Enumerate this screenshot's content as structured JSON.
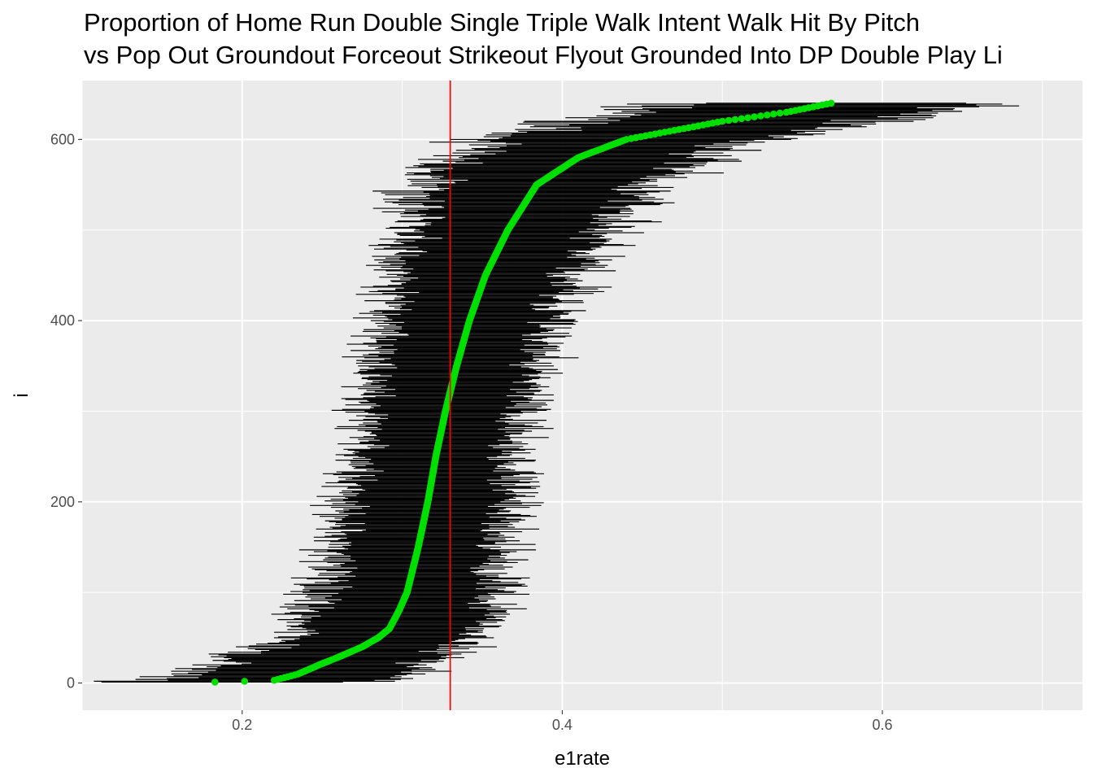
{
  "chart_data": {
    "type": "scatter",
    "title_lines": [
      "Proportion of  Home Run Double Single Triple Walk Intent Walk Hit By Pitch",
      "vs Pop Out Groundout Forceout Strikeout Flyout Grounded Into DP Double Play Li"
    ],
    "xlabel": "e1rate",
    "ylabel": "i",
    "xlim": [
      0.1,
      0.725
    ],
    "ylim": [
      -30,
      665
    ],
    "x_ticks": [
      0.2,
      0.4,
      0.6
    ],
    "x_tick_labels": [
      "0.2",
      "0.4",
      "0.6"
    ],
    "y_ticks": [
      0,
      200,
      400,
      600
    ],
    "y_tick_labels": [
      "0",
      "200",
      "400",
      "600"
    ],
    "grid": true,
    "reference_line_x": 0.33,
    "n_points": 640,
    "point_quantiles": {
      "i": [
        1,
        3,
        10,
        20,
        30,
        40,
        50,
        60,
        80,
        100,
        150,
        200,
        250,
        300,
        350,
        400,
        450,
        500,
        550,
        580,
        600,
        620,
        630,
        640
      ],
      "rate": [
        0.183,
        0.22,
        0.235,
        0.248,
        0.262,
        0.275,
        0.285,
        0.292,
        0.298,
        0.303,
        0.31,
        0.316,
        0.321,
        0.327,
        0.334,
        0.342,
        0.352,
        0.366,
        0.384,
        0.41,
        0.44,
        0.5,
        0.54,
        0.568
      ]
    },
    "interval_halfwidth": {
      "i": [
        0,
        50,
        150,
        300,
        450,
        550,
        620,
        640
      ],
      "halfwidth": [
        0.075,
        0.062,
        0.055,
        0.052,
        0.06,
        0.075,
        0.095,
        0.105
      ]
    },
    "colors": {
      "panel": "#EBEBEB",
      "grid": "#FFFFFF",
      "intervals": "#000000",
      "points": "#00E000",
      "reference_line": "#FF0000"
    }
  }
}
